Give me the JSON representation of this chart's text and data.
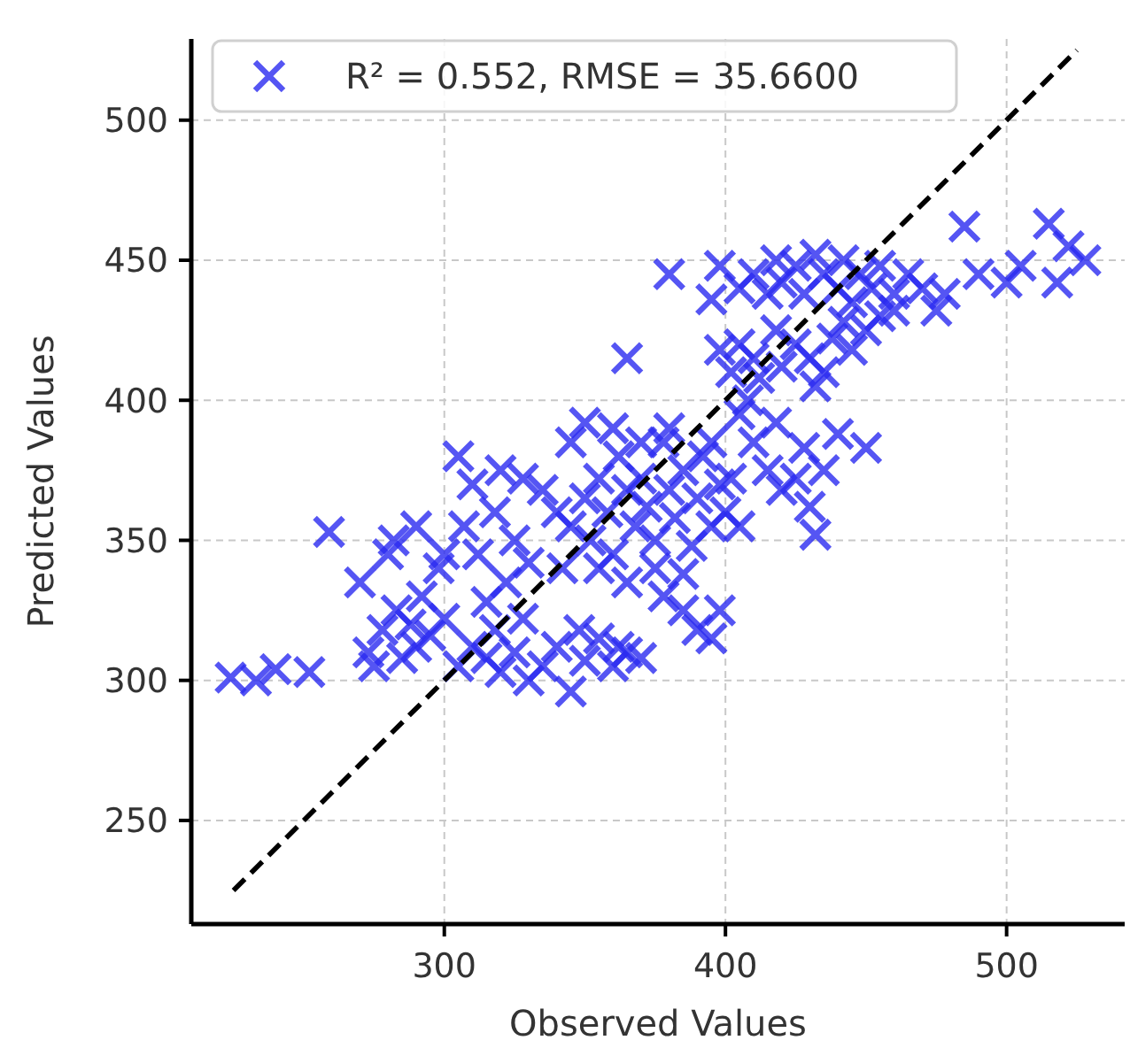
{
  "chart_data": {
    "type": "scatter",
    "xlabel": "Observed Values",
    "ylabel": "Predicted Values",
    "xlim": [
      210,
      542
    ],
    "ylim": [
      213,
      529
    ],
    "xticks": [
      300,
      400,
      500
    ],
    "yticks": [
      250,
      300,
      350,
      400,
      450,
      500
    ],
    "grid": true,
    "legend": "top left",
    "series": [
      {
        "name": "R² = 0.552, RMSE = 35.6600",
        "color": "#2a2af0",
        "marker": "cross",
        "x": [
          224,
          233,
          240,
          252,
          259,
          270,
          273,
          278,
          280,
          283,
          285,
          288,
          290,
          292,
          295,
          298,
          300,
          282,
          290,
          275,
          300,
          305,
          310,
          315,
          320,
          325,
          330,
          335,
          318,
          328,
          340,
          345,
          350,
          355,
          360,
          362,
          370,
          348,
          305,
          310,
          307,
          312,
          318,
          322,
          325,
          315,
          330,
          335,
          328,
          320,
          340,
          345,
          350,
          352,
          355,
          358,
          360,
          362,
          365,
          368,
          370,
          372,
          375,
          378,
          380,
          382,
          385,
          388,
          390,
          392,
          395,
          398,
          345,
          350,
          360,
          342,
          355,
          365,
          375,
          385,
          370,
          380,
          395,
          400,
          402,
          378,
          385,
          390,
          395,
          398,
          405,
          365,
          405,
          410,
          415,
          420,
          425,
          428,
          430,
          432,
          440,
          450,
          418,
          435,
          398,
          402,
          405,
          410,
          412,
          418,
          420,
          425,
          430,
          435,
          438,
          442,
          445,
          450,
          455,
          460,
          432,
          408,
          398,
          405,
          410,
          415,
          418,
          420,
          425,
          428,
          432,
          435,
          440,
          442,
          445,
          448,
          452,
          455,
          460,
          465,
          470,
          380,
          395,
          475,
          485,
          490,
          500,
          505,
          515,
          518,
          522,
          528,
          478,
          365
        ],
        "values": [
          301,
          300,
          304,
          303,
          353,
          335,
          310,
          318,
          345,
          325,
          308,
          320,
          312,
          330,
          316,
          340,
          322,
          350,
          355,
          305,
          345,
          305,
          312,
          308,
          303,
          310,
          300,
          305,
          318,
          322,
          312,
          296,
          307,
          315,
          305,
          312,
          308,
          318,
          380,
          370,
          355,
          345,
          360,
          335,
          350,
          328,
          342,
          368,
          372,
          375,
          360,
          355,
          365,
          350,
          372,
          360,
          345,
          380,
          368,
          355,
          372,
          362,
          350,
          385,
          368,
          358,
          375,
          348,
          365,
          380,
          355,
          370,
          385,
          392,
          390,
          340,
          340,
          335,
          340,
          338,
          385,
          390,
          385,
          360,
          372,
          330,
          325,
          318,
          315,
          325,
          355,
          310,
          395,
          385,
          375,
          368,
          372,
          383,
          362,
          352,
          388,
          383,
          392,
          375,
          418,
          410,
          420,
          415,
          408,
          425,
          412,
          420,
          415,
          410,
          422,
          428,
          418,
          425,
          430,
          432,
          405,
          400,
          448,
          440,
          445,
          438,
          450,
          442,
          448,
          438,
          452,
          445,
          440,
          450,
          435,
          445,
          440,
          448,
          438,
          445,
          440,
          445,
          436,
          432,
          462,
          445,
          442,
          448,
          463,
          442,
          455,
          450,
          438,
          415
        ]
      },
      {
        "type": "line",
        "color": "#000000",
        "line_style": "dashed",
        "marker": "none",
        "x": [
          225,
          525
        ],
        "values": [
          225,
          525
        ]
      }
    ]
  }
}
